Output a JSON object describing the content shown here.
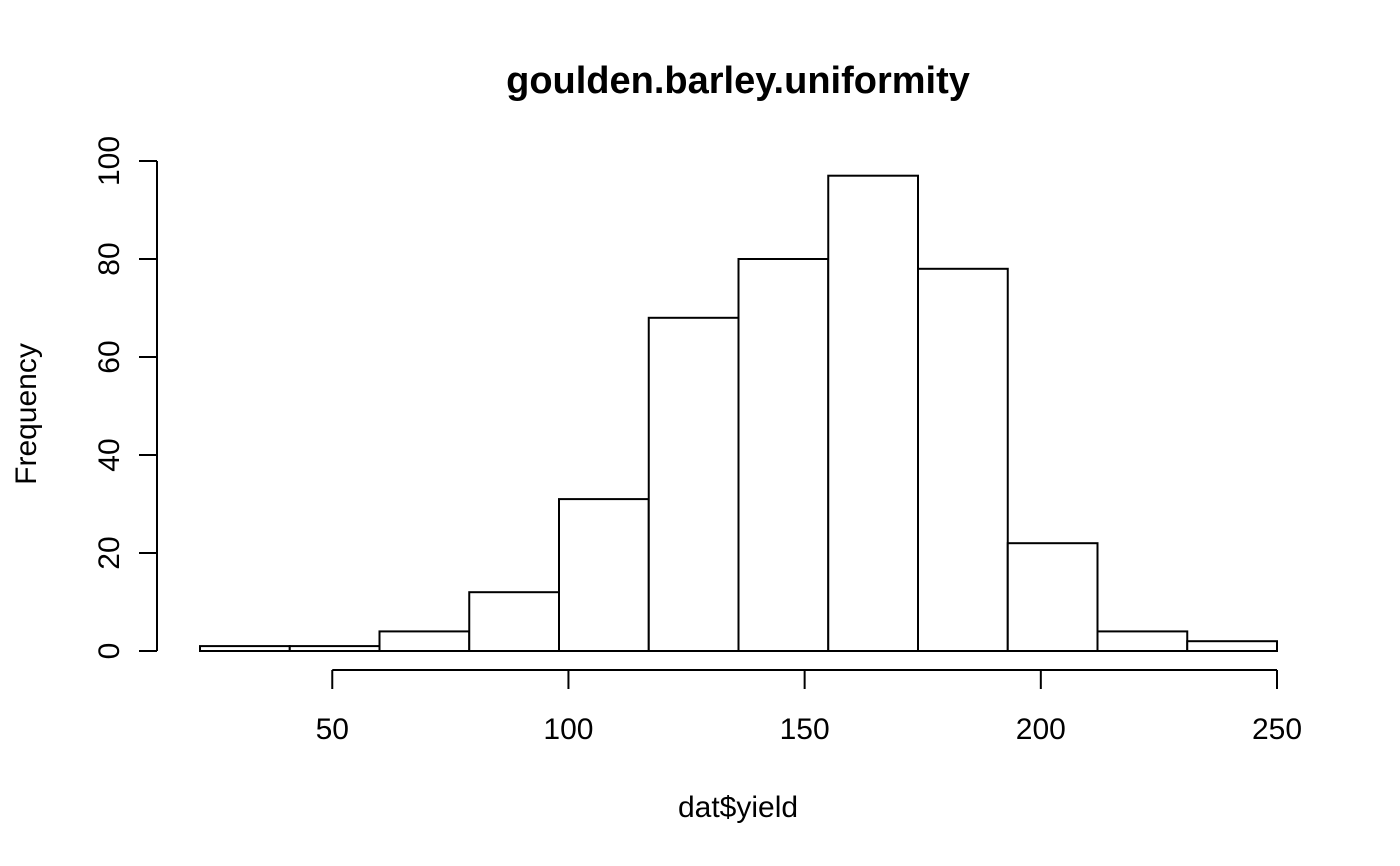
{
  "chart_data": {
    "type": "bar",
    "title": "goulden.barley.uniformity",
    "xlabel": "dat$yield",
    "ylabel": "Frequency",
    "bin_edges": [
      22,
      41,
      60,
      79,
      98,
      117,
      136,
      155,
      174,
      193,
      212,
      231,
      250
    ],
    "values": [
      1,
      1,
      4,
      12,
      31,
      68,
      80,
      97,
      78,
      22,
      4,
      2
    ],
    "xlim": [
      22,
      250
    ],
    "x_axis_ticks": [
      "50",
      "100",
      "150",
      "200",
      "250"
    ],
    "ylim": [
      0,
      100
    ],
    "y_axis_ticks": [
      "0",
      "20",
      "40",
      "60",
      "80",
      "100"
    ],
    "grid": false,
    "legend": "none"
  }
}
